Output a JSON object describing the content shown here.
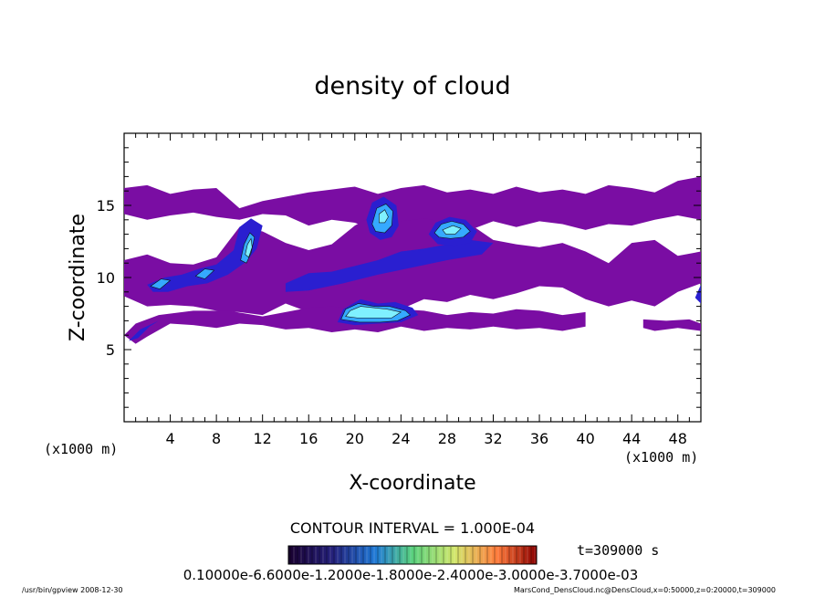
{
  "chart_data": {
    "type": "heatmap",
    "title": "density of cloud",
    "xlabel": "X-coordinate",
    "ylabel": "Z-coordinate",
    "x_unit_left": "(x1000 m)",
    "x_unit_right": "(x1000 m)",
    "xlim": [
      0,
      50
    ],
    "ylim": [
      0,
      20
    ],
    "x_ticks": [
      "4",
      "8",
      "12",
      "16",
      "20",
      "24",
      "28",
      "32",
      "36",
      "40",
      "44",
      "48"
    ],
    "y_ticks": [
      "5",
      "10",
      "15"
    ],
    "contour_interval": "CONTOUR INTERVAL = 1.000E-04",
    "time_label": "t=309000 s",
    "colorbar_labels": "0.10000e-6.6000e-1.2000e-1.8000e-2.4000e-3.0000e-3.7000e-03",
    "footer_left": "/usr/bin/gpview  2008-12-30",
    "footer_right": "MarsCond_DensCloud.nc@DensCloud,x=0:50000,z=0:20000,t=309000",
    "colors": {
      "purple": "#7a0da3",
      "dark_blue": "#2a1fd0",
      "blue": "#1858ff",
      "light_blue": "#35a9ff",
      "cyan": "#7ff0ff"
    },
    "regions": [
      {
        "name": "upper-layer",
        "level": 1,
        "points": [
          [
            0,
            16.2
          ],
          [
            2,
            16.4
          ],
          [
            4,
            15.8
          ],
          [
            6,
            16.1
          ],
          [
            8,
            16.2
          ],
          [
            10,
            14.8
          ],
          [
            12,
            15.3
          ],
          [
            14,
            15.6
          ],
          [
            16,
            15.9
          ],
          [
            18,
            16.1
          ],
          [
            20,
            16.3
          ],
          [
            22,
            15.8
          ],
          [
            24,
            16.2
          ],
          [
            26,
            16.4
          ],
          [
            28,
            15.9
          ],
          [
            30,
            16.1
          ],
          [
            32,
            15.8
          ],
          [
            34,
            16.3
          ],
          [
            36,
            15.9
          ],
          [
            38,
            16.1
          ],
          [
            40,
            15.8
          ],
          [
            42,
            16.4
          ],
          [
            44,
            16.2
          ],
          [
            46,
            15.9
          ],
          [
            48,
            16.7
          ],
          [
            50,
            17.0
          ],
          [
            50,
            14.0
          ],
          [
            48,
            14.3
          ],
          [
            46,
            14.0
          ],
          [
            44,
            13.6
          ],
          [
            42,
            13.7
          ],
          [
            40,
            13.3
          ],
          [
            38,
            13.7
          ],
          [
            36,
            13.9
          ],
          [
            34,
            13.5
          ],
          [
            32,
            13.9
          ],
          [
            30,
            13.3
          ],
          [
            28,
            13.5
          ],
          [
            26,
            13.8
          ],
          [
            24,
            13.6
          ],
          [
            22,
            13.2
          ],
          [
            20,
            13.8
          ],
          [
            18,
            14.0
          ],
          [
            16,
            13.6
          ],
          [
            14,
            14.3
          ],
          [
            12,
            14.4
          ],
          [
            10,
            14.0
          ],
          [
            8,
            14.2
          ],
          [
            6,
            14.5
          ],
          [
            4,
            14.3
          ],
          [
            2,
            14.0
          ],
          [
            0,
            14.4
          ]
        ]
      },
      {
        "name": "middle-layer",
        "level": 1,
        "points": [
          [
            0,
            11.2
          ],
          [
            2,
            11.6
          ],
          [
            4,
            11.0
          ],
          [
            6,
            10.9
          ],
          [
            8,
            11.4
          ],
          [
            10,
            13.5
          ],
          [
            12,
            13.2
          ],
          [
            14,
            12.4
          ],
          [
            16,
            11.9
          ],
          [
            18,
            12.3
          ],
          [
            20,
            13.6
          ],
          [
            22,
            14.5
          ],
          [
            24,
            13.9
          ],
          [
            26,
            14.1
          ],
          [
            28,
            13.8
          ],
          [
            30,
            13.7
          ],
          [
            32,
            12.6
          ],
          [
            34,
            12.3
          ],
          [
            36,
            12.1
          ],
          [
            38,
            12.4
          ],
          [
            40,
            11.8
          ],
          [
            42,
            11.0
          ],
          [
            44,
            12.4
          ],
          [
            46,
            12.6
          ],
          [
            48,
            11.5
          ],
          [
            50,
            11.8
          ],
          [
            50,
            9.6
          ],
          [
            48,
            9.0
          ],
          [
            46,
            8.0
          ],
          [
            44,
            8.4
          ],
          [
            42,
            8.0
          ],
          [
            40,
            8.5
          ],
          [
            38,
            9.3
          ],
          [
            36,
            9.4
          ],
          [
            34,
            8.9
          ],
          [
            32,
            8.5
          ],
          [
            30,
            8.8
          ],
          [
            28,
            8.3
          ],
          [
            26,
            8.5
          ],
          [
            24,
            7.8
          ],
          [
            22,
            7.5
          ],
          [
            20,
            7.3
          ],
          [
            18,
            7.1
          ],
          [
            16,
            7.6
          ],
          [
            14,
            8.2
          ],
          [
            12,
            7.4
          ],
          [
            10,
            7.6
          ],
          [
            8,
            7.7
          ],
          [
            6,
            8.0
          ],
          [
            4,
            8.1
          ],
          [
            2,
            8.0
          ],
          [
            0,
            8.7
          ]
        ]
      },
      {
        "name": "lower-layer",
        "level": 1,
        "points": [
          [
            0,
            6.0
          ],
          [
            1,
            6.8
          ],
          [
            3,
            7.4
          ],
          [
            6,
            7.7
          ],
          [
            9,
            7.7
          ],
          [
            12,
            7.3
          ],
          [
            14,
            7.6
          ],
          [
            16,
            7.9
          ],
          [
            18,
            8.0
          ],
          [
            20,
            7.8
          ],
          [
            22,
            7.6
          ],
          [
            24,
            7.8
          ],
          [
            26,
            7.7
          ],
          [
            28,
            7.4
          ],
          [
            30,
            7.6
          ],
          [
            32,
            7.5
          ],
          [
            34,
            7.8
          ],
          [
            36,
            7.7
          ],
          [
            38,
            7.4
          ],
          [
            40,
            7.6
          ],
          [
            40,
            6.6
          ],
          [
            38,
            6.3
          ],
          [
            36,
            6.5
          ],
          [
            34,
            6.4
          ],
          [
            32,
            6.6
          ],
          [
            30,
            6.4
          ],
          [
            28,
            6.5
          ],
          [
            26,
            6.3
          ],
          [
            24,
            6.6
          ],
          [
            22,
            6.2
          ],
          [
            20,
            6.4
          ],
          [
            18,
            6.2
          ],
          [
            16,
            6.5
          ],
          [
            14,
            6.4
          ],
          [
            12,
            6.7
          ],
          [
            10,
            6.8
          ],
          [
            8,
            6.5
          ],
          [
            6,
            6.7
          ],
          [
            4,
            6.8
          ],
          [
            2,
            5.9
          ],
          [
            1,
            5.4
          ]
        ]
      },
      {
        "name": "right-lower-patch",
        "level": 1,
        "points": [
          [
            45,
            7.1
          ],
          [
            47,
            7.0
          ],
          [
            49,
            7.1
          ],
          [
            50,
            6.8
          ],
          [
            50,
            6.3
          ],
          [
            48,
            6.5
          ],
          [
            46,
            6.3
          ],
          [
            45,
            6.5
          ]
        ]
      },
      {
        "name": "left-lower-streak",
        "level": 2,
        "points": [
          [
            0.4,
            5.6
          ],
          [
            1.4,
            6.4
          ],
          [
            3.0,
            7.0
          ],
          [
            2.2,
            6.6
          ],
          [
            1.2,
            5.8
          ]
        ]
      },
      {
        "name": "central-band-dark",
        "level": 2,
        "points": [
          [
            14,
            9.6
          ],
          [
            16,
            10.3
          ],
          [
            18,
            10.4
          ],
          [
            20,
            10.8
          ],
          [
            22,
            11.2
          ],
          [
            24,
            11.8
          ],
          [
            26,
            12.0
          ],
          [
            28,
            12.3
          ],
          [
            30,
            12.6
          ],
          [
            32,
            12.4
          ],
          [
            31,
            11.6
          ],
          [
            28,
            11.2
          ],
          [
            25,
            10.7
          ],
          [
            22,
            10.2
          ],
          [
            19,
            9.6
          ],
          [
            16,
            9.1
          ],
          [
            14,
            9.0
          ]
        ]
      },
      {
        "name": "lower-core-dark",
        "level": 2,
        "points": [
          [
            18.5,
            6.9
          ],
          [
            19,
            7.8
          ],
          [
            20.5,
            8.5
          ],
          [
            22,
            8.2
          ],
          [
            23.5,
            8.3
          ],
          [
            25,
            7.9
          ],
          [
            25.5,
            7.4
          ],
          [
            24,
            6.9
          ],
          [
            22,
            6.8
          ],
          [
            20,
            6.7
          ]
        ]
      },
      {
        "name": "left-blob-dark",
        "level": 2,
        "points": [
          [
            2,
            9.5
          ],
          [
            3.5,
            10.0
          ],
          [
            5,
            10.2
          ],
          [
            6.5,
            10.6
          ],
          [
            8,
            10.9
          ],
          [
            9.5,
            11.9
          ],
          [
            10,
            13.5
          ],
          [
            11,
            14.1
          ],
          [
            12,
            13.6
          ],
          [
            11.5,
            12.0
          ],
          [
            10.6,
            11.1
          ],
          [
            9,
            10.2
          ],
          [
            7.2,
            9.6
          ],
          [
            5.5,
            9.4
          ],
          [
            3.8,
            9.0
          ],
          [
            2.5,
            9.0
          ]
        ]
      },
      {
        "name": "upper-left-core-dark",
        "level": 2,
        "points": [
          [
            21,
            14.0
          ],
          [
            21.5,
            15.2
          ],
          [
            22.5,
            15.6
          ],
          [
            23.6,
            15.0
          ],
          [
            23.8,
            13.6
          ],
          [
            23.2,
            12.8
          ],
          [
            22.2,
            12.6
          ],
          [
            21.3,
            13.1
          ]
        ]
      },
      {
        "name": "upper-right-core-dark",
        "level": 2,
        "points": [
          [
            26.4,
            13.0
          ],
          [
            27.0,
            13.8
          ],
          [
            28.2,
            14.2
          ],
          [
            29.6,
            14.0
          ],
          [
            30.6,
            13.2
          ],
          [
            30.0,
            12.4
          ],
          [
            28.7,
            12.2
          ],
          [
            27.2,
            12.3
          ]
        ]
      },
      {
        "name": "right-edge-dark",
        "level": 2,
        "points": [
          [
            49.5,
            8.6
          ],
          [
            50,
            9.5
          ],
          [
            50,
            8.2
          ]
        ]
      },
      {
        "name": "lower-core-mid",
        "level": 3,
        "points": [
          [
            18.8,
            7.1
          ],
          [
            19.2,
            7.8
          ],
          [
            20.3,
            8.2
          ],
          [
            21.7,
            8.0
          ],
          [
            23.0,
            8.0
          ],
          [
            24.4,
            7.7
          ],
          [
            24.8,
            7.4
          ],
          [
            23.7,
            7.0
          ],
          [
            22.2,
            6.9
          ],
          [
            20.4,
            6.9
          ]
        ]
      },
      {
        "name": "left-blob-mid",
        "level": 3,
        "points": [
          [
            10.1,
            11.2
          ],
          [
            10.4,
            12.3
          ],
          [
            10.9,
            13.1
          ],
          [
            11.3,
            12.8
          ],
          [
            11.0,
            11.7
          ],
          [
            10.6,
            11.0
          ]
        ]
      },
      {
        "name": "small-left-mid",
        "level": 3,
        "points": [
          [
            2.3,
            9.4
          ],
          [
            3.2,
            9.9
          ],
          [
            4.0,
            9.8
          ],
          [
            3.1,
            9.2
          ]
        ]
      },
      {
        "name": "small-center-mid",
        "level": 3,
        "points": [
          [
            6.2,
            10.1
          ],
          [
            7.0,
            10.6
          ],
          [
            7.8,
            10.5
          ],
          [
            7.0,
            9.9
          ]
        ]
      },
      {
        "name": "upper-left-core-mid",
        "level": 3,
        "points": [
          [
            21.5,
            13.7
          ],
          [
            21.9,
            14.8
          ],
          [
            22.7,
            15.1
          ],
          [
            23.3,
            14.6
          ],
          [
            23.2,
            13.6
          ],
          [
            22.6,
            13.1
          ],
          [
            21.8,
            13.2
          ]
        ]
      },
      {
        "name": "upper-right-core-mid",
        "level": 3,
        "points": [
          [
            26.9,
            13.1
          ],
          [
            27.5,
            13.7
          ],
          [
            28.4,
            13.9
          ],
          [
            29.4,
            13.7
          ],
          [
            30.0,
            13.2
          ],
          [
            29.4,
            12.8
          ],
          [
            28.3,
            12.7
          ],
          [
            27.3,
            12.8
          ]
        ]
      },
      {
        "name": "lower-core-light",
        "level": 4,
        "points": [
          [
            19.2,
            7.3
          ],
          [
            19.6,
            7.7
          ],
          [
            20.5,
            8.0
          ],
          [
            21.7,
            7.9
          ],
          [
            22.8,
            7.8
          ],
          [
            24.0,
            7.6
          ],
          [
            23.2,
            7.2
          ],
          [
            21.8,
            7.2
          ],
          [
            20.2,
            7.2
          ]
        ]
      },
      {
        "name": "left-blob-light",
        "level": 4,
        "points": [
          [
            10.5,
            11.6
          ],
          [
            10.7,
            12.3
          ],
          [
            11.0,
            12.7
          ],
          [
            11.1,
            12.1
          ],
          [
            10.8,
            11.4
          ]
        ]
      },
      {
        "name": "upper-left-core-light",
        "level": 4,
        "points": [
          [
            22.1,
            14.4
          ],
          [
            22.6,
            14.7
          ],
          [
            22.9,
            14.2
          ],
          [
            22.6,
            13.8
          ],
          [
            22.1,
            13.8
          ]
        ]
      },
      {
        "name": "upper-right-core-light",
        "level": 4,
        "points": [
          [
            27.6,
            13.3
          ],
          [
            28.5,
            13.6
          ],
          [
            29.2,
            13.4
          ],
          [
            28.7,
            13.0
          ],
          [
            27.9,
            13.0
          ]
        ]
      }
    ]
  }
}
